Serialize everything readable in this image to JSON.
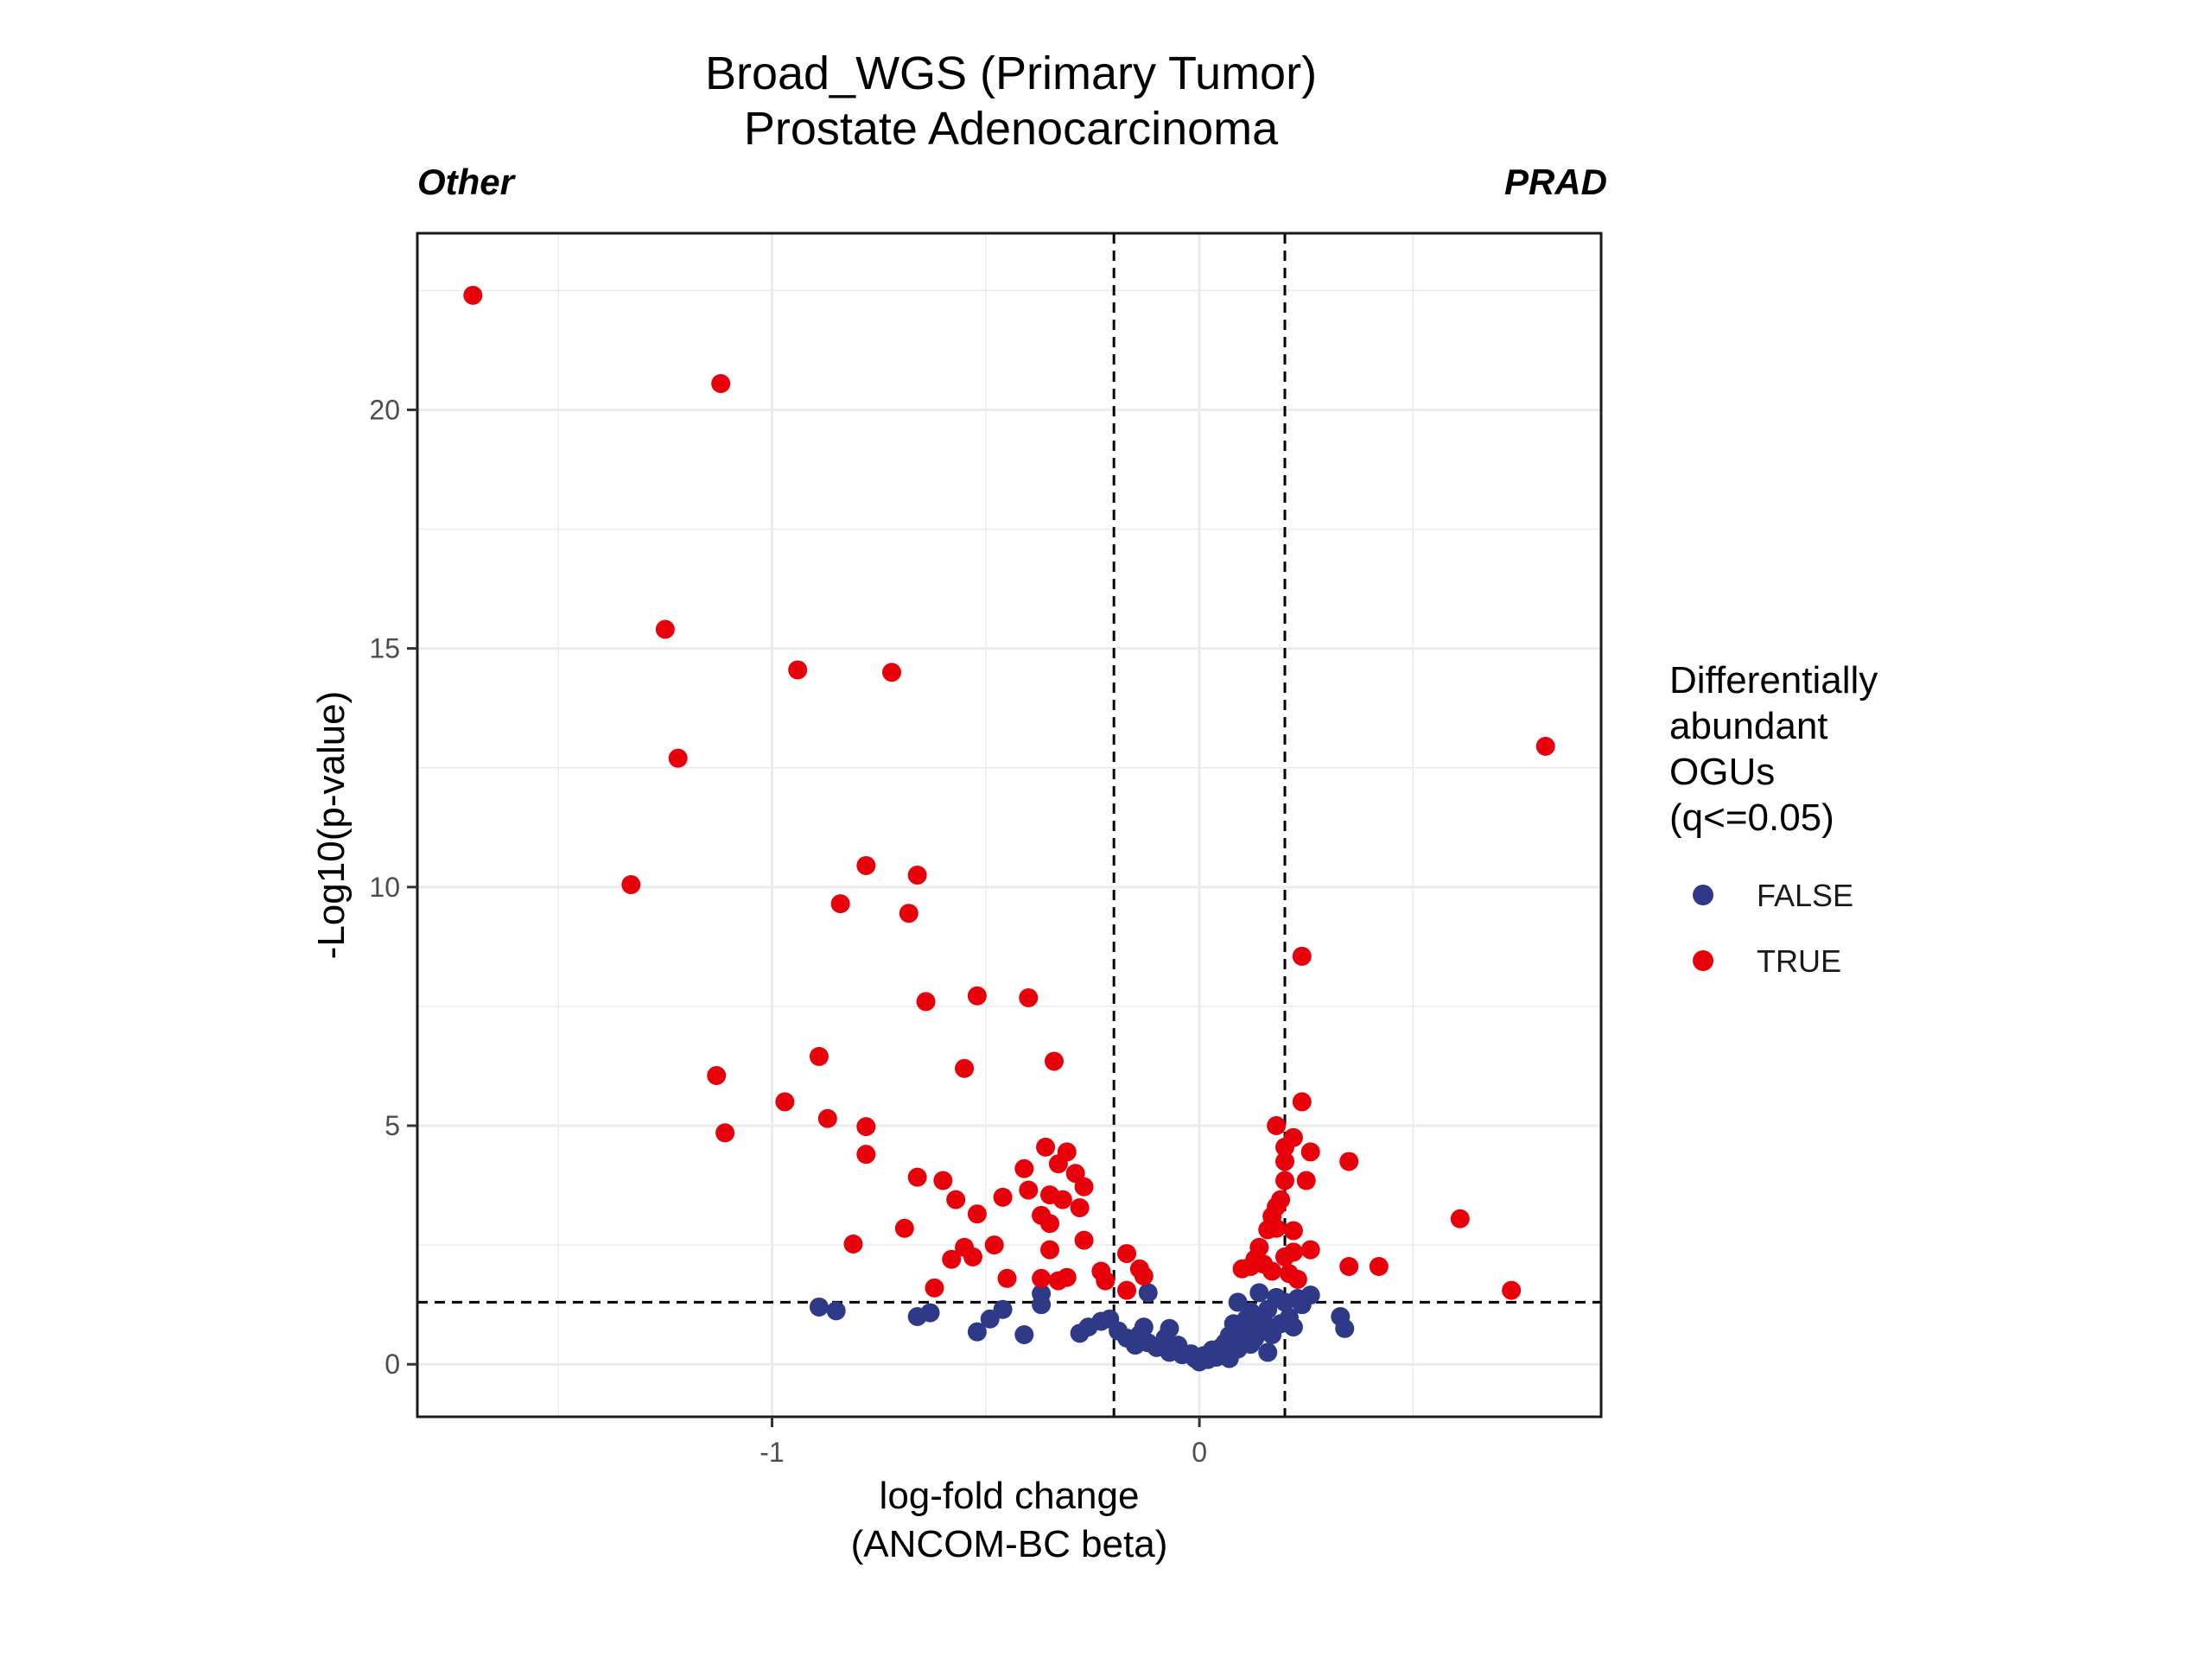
{
  "chart_data": {
    "type": "scatter",
    "title": "Broad_WGS (Primary Tumor)",
    "subtitle": "Prostate Adenocarcinoma",
    "left_annotation": "Other",
    "right_annotation": "PRAD",
    "xlabel": "log-fold change",
    "xlabel_sub": "(ANCOM-BC beta)",
    "ylabel": "-Log10(p-value)",
    "xlim": [
      -1.83,
      0.94
    ],
    "ylim": [
      -1.1,
      23.7
    ],
    "x_ticks": [
      -1,
      0
    ],
    "x_tick_labels": [
      "-1",
      "0"
    ],
    "y_ticks": [
      0,
      5,
      10,
      15,
      20
    ],
    "y_tick_labels": [
      "0",
      "5",
      "10",
      "15",
      "20"
    ],
    "grid": true,
    "threshold_lines": {
      "vertical": [
        -0.2,
        0.2
      ],
      "horizontal": 1.3,
      "style": "dashed"
    },
    "legend": {
      "title_lines": [
        "Differentially",
        "abundant",
        "OGUs",
        "(q<=0.05)"
      ],
      "position": "right",
      "entries": [
        {
          "label": "FALSE",
          "color": "#2e3a87"
        },
        {
          "label": "TRUE",
          "color": "#e8000b"
        }
      ]
    },
    "series": [
      {
        "name": "FALSE",
        "color": "#2e3a87",
        "points": [
          [
            -0.89,
            1.2
          ],
          [
            -0.85,
            1.12
          ],
          [
            -0.66,
            1.0
          ],
          [
            -0.63,
            1.08
          ],
          [
            -0.52,
            0.68
          ],
          [
            -0.49,
            0.95
          ],
          [
            -0.46,
            1.15
          ],
          [
            -0.41,
            0.62
          ],
          [
            -0.37,
            1.25
          ],
          [
            -0.37,
            1.48
          ],
          [
            -0.28,
            0.65
          ],
          [
            -0.26,
            0.78
          ],
          [
            -0.23,
            0.9
          ],
          [
            -0.21,
            0.95
          ],
          [
            -0.19,
            0.7
          ],
          [
            -0.17,
            0.55
          ],
          [
            -0.15,
            0.4
          ],
          [
            -0.14,
            0.62
          ],
          [
            -0.13,
            0.78
          ],
          [
            -0.12,
            0.45
          ],
          [
            -0.12,
            1.5
          ],
          [
            -0.1,
            0.35
          ],
          [
            -0.08,
            0.55
          ],
          [
            -0.07,
            0.75
          ],
          [
            -0.07,
            0.25
          ],
          [
            -0.05,
            0.4
          ],
          [
            -0.04,
            0.2
          ],
          [
            -0.02,
            0.22
          ],
          [
            -0.01,
            0.12
          ],
          [
            0.0,
            0.05
          ],
          [
            0.01,
            0.18
          ],
          [
            0.02,
            0.1
          ],
          [
            0.03,
            0.3
          ],
          [
            0.04,
            0.15
          ],
          [
            0.05,
            0.35
          ],
          [
            0.06,
            0.45
          ],
          [
            0.07,
            0.12
          ],
          [
            0.07,
            0.6
          ],
          [
            0.08,
            0.85
          ],
          [
            0.09,
            0.32
          ],
          [
            0.09,
            1.3
          ],
          [
            0.1,
            0.7
          ],
          [
            0.11,
            0.95
          ],
          [
            0.12,
            1.1
          ],
          [
            0.12,
            0.42
          ],
          [
            0.13,
            0.55
          ],
          [
            0.14,
            1.5
          ],
          [
            0.14,
            0.78
          ],
          [
            0.15,
            0.9
          ],
          [
            0.16,
            0.25
          ],
          [
            0.16,
            1.15
          ],
          [
            0.17,
            0.62
          ],
          [
            0.18,
            1.4
          ],
          [
            0.19,
            0.85
          ],
          [
            0.2,
            1.3
          ],
          [
            0.21,
            0.98
          ],
          [
            0.22,
            0.78
          ],
          [
            0.23,
            1.38
          ],
          [
            0.24,
            1.25
          ],
          [
            0.26,
            1.45
          ],
          [
            0.33,
            1.0
          ],
          [
            0.34,
            0.75
          ]
        ]
      },
      {
        "name": "TRUE",
        "color": "#e8000b",
        "points": [
          [
            -1.7,
            22.4
          ],
          [
            -1.12,
            20.55
          ],
          [
            -1.25,
            15.4
          ],
          [
            -0.94,
            14.55
          ],
          [
            -0.72,
            14.5
          ],
          [
            -1.22,
            12.7
          ],
          [
            -1.33,
            10.05
          ],
          [
            -0.78,
            10.45
          ],
          [
            -0.66,
            10.25
          ],
          [
            -0.84,
            9.65
          ],
          [
            -0.68,
            9.45
          ],
          [
            -0.52,
            7.72
          ],
          [
            -0.4,
            7.68
          ],
          [
            -0.64,
            7.6
          ],
          [
            -0.34,
            6.35
          ],
          [
            -0.89,
            6.45
          ],
          [
            -0.55,
            6.2
          ],
          [
            -1.13,
            6.05
          ],
          [
            -0.97,
            5.5
          ],
          [
            -0.87,
            5.15
          ],
          [
            -1.11,
            4.85
          ],
          [
            -0.78,
            4.98
          ],
          [
            -0.36,
            4.55
          ],
          [
            -0.31,
            4.45
          ],
          [
            -0.78,
            4.4
          ],
          [
            -0.33,
            4.2
          ],
          [
            -0.41,
            4.1
          ],
          [
            -0.29,
            4.0
          ],
          [
            -0.66,
            3.92
          ],
          [
            -0.6,
            3.85
          ],
          [
            -0.27,
            3.72
          ],
          [
            -0.4,
            3.65
          ],
          [
            -0.46,
            3.5
          ],
          [
            -0.57,
            3.45
          ],
          [
            -0.35,
            3.55
          ],
          [
            -0.32,
            3.45
          ],
          [
            -0.28,
            3.28
          ],
          [
            -0.37,
            3.12
          ],
          [
            -0.52,
            3.15
          ],
          [
            -0.35,
            2.95
          ],
          [
            -0.69,
            2.85
          ],
          [
            -0.27,
            2.6
          ],
          [
            -0.48,
            2.5
          ],
          [
            -0.55,
            2.45
          ],
          [
            -0.81,
            2.52
          ],
          [
            -0.35,
            2.4
          ],
          [
            -0.53,
            2.25
          ],
          [
            -0.58,
            2.2
          ],
          [
            -0.23,
            1.95
          ],
          [
            -0.17,
            2.32
          ],
          [
            -0.14,
            2.0
          ],
          [
            -0.33,
            1.75
          ],
          [
            -0.37,
            1.8
          ],
          [
            -0.31,
            1.82
          ],
          [
            -0.45,
            1.8
          ],
          [
            -0.22,
            1.75
          ],
          [
            -0.13,
            1.85
          ],
          [
            -0.62,
            1.6
          ],
          [
            -0.17,
            1.55
          ],
          [
            0.18,
            5.0
          ],
          [
            0.22,
            4.75
          ],
          [
            0.24,
            5.5
          ],
          [
            0.2,
            4.55
          ],
          [
            0.26,
            4.45
          ],
          [
            0.2,
            4.25
          ],
          [
            0.35,
            4.25
          ],
          [
            0.2,
            3.85
          ],
          [
            0.25,
            3.85
          ],
          [
            0.19,
            3.45
          ],
          [
            0.18,
            3.3
          ],
          [
            0.17,
            3.1
          ],
          [
            0.18,
            2.85
          ],
          [
            0.22,
            2.8
          ],
          [
            0.16,
            2.82
          ],
          [
            0.14,
            2.45
          ],
          [
            0.2,
            2.25
          ],
          [
            0.26,
            2.4
          ],
          [
            0.22,
            2.35
          ],
          [
            0.12,
            2.05
          ],
          [
            0.15,
            2.1
          ],
          [
            0.17,
            1.95
          ],
          [
            0.21,
            1.9
          ],
          [
            0.1,
            2.0
          ],
          [
            0.35,
            2.05
          ],
          [
            0.42,
            2.05
          ],
          [
            0.13,
            2.2
          ],
          [
            0.23,
            1.78
          ],
          [
            0.24,
            8.55
          ],
          [
            0.81,
            12.95
          ],
          [
            0.61,
            3.05
          ],
          [
            0.73,
            1.55
          ]
        ]
      }
    ]
  }
}
